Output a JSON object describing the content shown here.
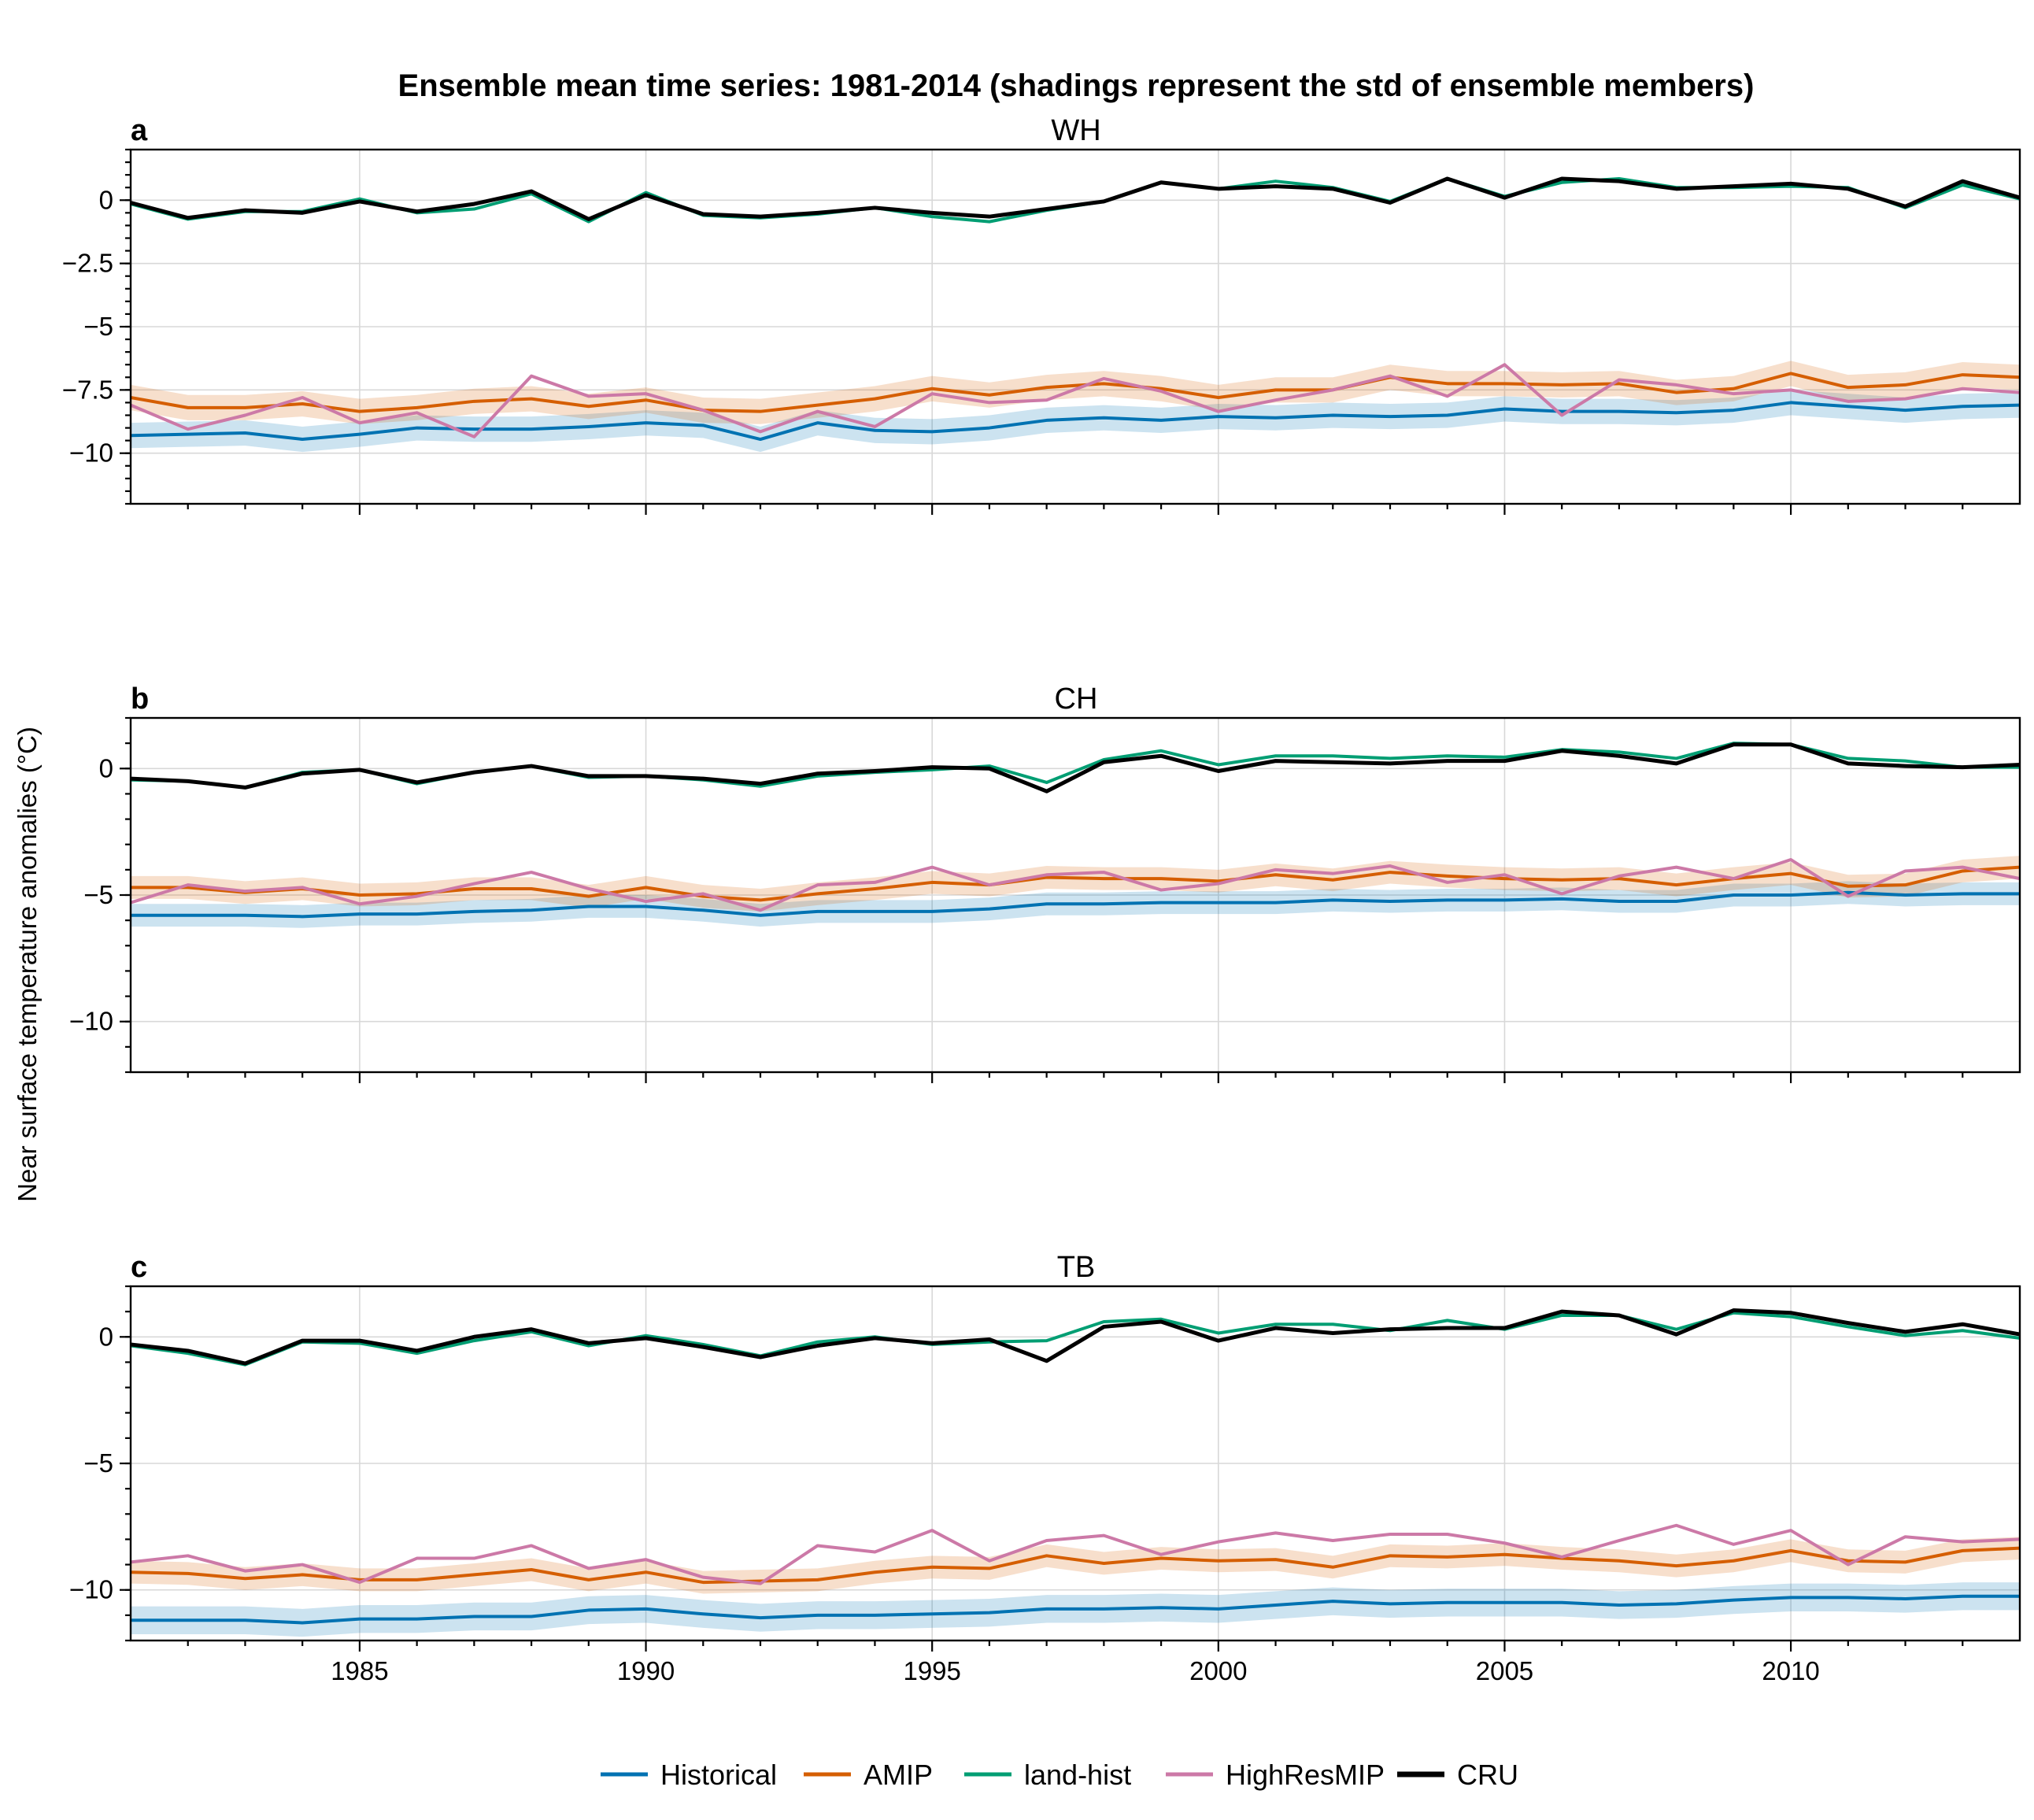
{
  "chart_data": {
    "title": "Ensemble mean time series: 1981-2014 (shadings represent the std of ensemble members)",
    "ylabel": "Near surface temperature anomalies (°C)",
    "type": "line",
    "x": [
      1981,
      1982,
      1983,
      1984,
      1985,
      1986,
      1987,
      1988,
      1989,
      1990,
      1991,
      1992,
      1993,
      1994,
      1995,
      1996,
      1997,
      1998,
      1999,
      2000,
      2001,
      2002,
      2003,
      2004,
      2005,
      2006,
      2007,
      2008,
      2009,
      2010,
      2011,
      2012,
      2013,
      2014
    ],
    "xlim": [
      1981,
      2014
    ],
    "xticks": [
      1985,
      1990,
      1995,
      2000,
      2005,
      2010
    ],
    "grid": true,
    "legend": {
      "position": "bottom-center",
      "entries": [
        {
          "name": "Historical",
          "color": "#0072B2"
        },
        {
          "name": "AMIP",
          "color": "#D55E00"
        },
        {
          "name": "land-hist",
          "color": "#009E73"
        },
        {
          "name": "HighResMIP",
          "color": "#CC79A7"
        },
        {
          "name": "CRU",
          "color": "#000000"
        }
      ]
    },
    "panels": [
      {
        "letter": "a",
        "title": "WH",
        "ylim": [
          -12,
          2
        ],
        "yticks": [
          0,
          -2.5,
          -5,
          -7.5,
          -10
        ],
        "ytick_labels": [
          "0",
          "−2.5",
          "−5",
          "−7.5",
          "−10"
        ],
        "series": [
          {
            "name": "Historical",
            "color": "#0072B2",
            "std": 0.5,
            "values": [
              -9.3,
              -9.25,
              -9.2,
              -9.45,
              -9.25,
              -9.0,
              -9.05,
              -9.05,
              -8.95,
              -8.8,
              -8.9,
              -9.45,
              -8.8,
              -9.1,
              -9.15,
              -9.0,
              -8.7,
              -8.6,
              -8.7,
              -8.55,
              -8.6,
              -8.5,
              -8.55,
              -8.5,
              -8.25,
              -8.35,
              -8.35,
              -8.4,
              -8.3,
              -8.0,
              -8.15,
              -8.3,
              -8.15,
              -8.1
            ]
          },
          {
            "name": "AMIP",
            "color": "#D55E00",
            "std": 0.5,
            "values": [
              -7.8,
              -8.2,
              -8.2,
              -8.05,
              -8.35,
              -8.2,
              -7.95,
              -7.85,
              -8.15,
              -7.9,
              -8.3,
              -8.35,
              -8.1,
              -7.85,
              -7.45,
              -7.7,
              -7.4,
              -7.25,
              -7.45,
              -7.8,
              -7.5,
              -7.5,
              -7.0,
              -7.25,
              -7.25,
              -7.3,
              -7.25,
              -7.6,
              -7.45,
              -6.85,
              -7.4,
              -7.3,
              -6.9,
              -7.0
            ]
          },
          {
            "name": "land-hist",
            "color": "#009E73",
            "std": 0,
            "values": [
              -0.15,
              -0.75,
              -0.45,
              -0.45,
              0.05,
              -0.5,
              -0.35,
              0.25,
              -0.85,
              0.3,
              -0.6,
              -0.7,
              -0.55,
              -0.3,
              -0.65,
              -0.85,
              -0.4,
              -0.05,
              0.7,
              0.45,
              0.75,
              0.5,
              -0.05,
              0.85,
              0.15,
              0.7,
              0.85,
              0.5,
              0.5,
              0.55,
              0.5,
              -0.3,
              0.6,
              0.05
            ]
          },
          {
            "name": "HighResMIP",
            "color": "#CC79A7",
            "std": 0,
            "values": [
              -8.1,
              -9.05,
              -8.5,
              -7.8,
              -8.8,
              -8.4,
              -9.35,
              -6.95,
              -7.75,
              -7.65,
              -8.3,
              -9.15,
              -8.35,
              -8.95,
              -7.65,
              -8.0,
              -7.9,
              -7.05,
              -7.55,
              -8.35,
              -7.9,
              -7.5,
              -6.95,
              -7.75,
              -6.5,
              -8.5,
              -7.1,
              -7.3,
              -7.65,
              -7.5,
              -7.95,
              -7.85,
              -7.45,
              -7.6
            ]
          },
          {
            "name": "CRU",
            "color": "#000000",
            "std": 0,
            "values": [
              -0.1,
              -0.7,
              -0.4,
              -0.5,
              -0.05,
              -0.45,
              -0.15,
              0.35,
              -0.75,
              0.2,
              -0.55,
              -0.65,
              -0.5,
              -0.3,
              -0.5,
              -0.65,
              -0.35,
              -0.05,
              0.7,
              0.45,
              0.55,
              0.45,
              -0.1,
              0.85,
              0.1,
              0.85,
              0.75,
              0.45,
              0.55,
              0.65,
              0.45,
              -0.25,
              0.75,
              0.1
            ]
          }
        ]
      },
      {
        "letter": "b",
        "title": "CH",
        "ylim": [
          -12,
          2
        ],
        "yticks": [
          0,
          -5,
          -10
        ],
        "ytick_labels": [
          "0",
          "−5",
          "−10"
        ],
        "series": [
          {
            "name": "Historical",
            "color": "#0072B2",
            "std": 0.45,
            "values": [
              -5.8,
              -5.8,
              -5.8,
              -5.85,
              -5.75,
              -5.75,
              -5.65,
              -5.6,
              -5.45,
              -5.45,
              -5.6,
              -5.8,
              -5.65,
              -5.65,
              -5.65,
              -5.55,
              -5.35,
              -5.35,
              -5.3,
              -5.3,
              -5.3,
              -5.2,
              -5.25,
              -5.2,
              -5.2,
              -5.15,
              -5.25,
              -5.25,
              -5.0,
              -5.0,
              -4.9,
              -5.0,
              -4.95,
              -4.95
            ]
          },
          {
            "name": "AMIP",
            "color": "#D55E00",
            "std": 0.45,
            "values": [
              -4.7,
              -4.7,
              -4.9,
              -4.75,
              -5.0,
              -4.95,
              -4.75,
              -4.75,
              -5.05,
              -4.7,
              -5.05,
              -5.2,
              -4.95,
              -4.75,
              -4.5,
              -4.6,
              -4.3,
              -4.35,
              -4.35,
              -4.45,
              -4.2,
              -4.4,
              -4.1,
              -4.25,
              -4.35,
              -4.4,
              -4.35,
              -4.6,
              -4.35,
              -4.15,
              -4.65,
              -4.6,
              -4.05,
              -3.9
            ]
          },
          {
            "name": "land-hist",
            "color": "#009E73",
            "std": 0,
            "values": [
              -0.45,
              -0.5,
              -0.75,
              -0.15,
              -0.05,
              -0.6,
              -0.15,
              0.1,
              -0.35,
              -0.3,
              -0.45,
              -0.7,
              -0.3,
              -0.15,
              -0.05,
              0.1,
              -0.55,
              0.35,
              0.7,
              0.15,
              0.5,
              0.5,
              0.4,
              0.5,
              0.45,
              0.75,
              0.65,
              0.4,
              1.0,
              0.95,
              0.4,
              0.3,
              0.05,
              0.05
            ]
          },
          {
            "name": "HighResMIP",
            "color": "#CC79A7",
            "std": 0,
            "values": [
              -5.3,
              -4.6,
              -4.85,
              -4.7,
              -5.35,
              -5.05,
              -4.55,
              -4.1,
              -4.75,
              -5.25,
              -4.95,
              -5.6,
              -4.6,
              -4.5,
              -3.9,
              -4.6,
              -4.2,
              -4.1,
              -4.8,
              -4.55,
              -4.0,
              -4.15,
              -3.85,
              -4.5,
              -4.2,
              -4.95,
              -4.25,
              -3.9,
              -4.35,
              -3.6,
              -5.05,
              -4.05,
              -3.9,
              -4.35
            ]
          },
          {
            "name": "CRU",
            "color": "#000000",
            "std": 0,
            "values": [
              -0.4,
              -0.5,
              -0.75,
              -0.2,
              -0.05,
              -0.55,
              -0.15,
              0.1,
              -0.3,
              -0.3,
              -0.4,
              -0.6,
              -0.2,
              -0.1,
              0.05,
              0.0,
              -0.9,
              0.25,
              0.5,
              -0.1,
              0.3,
              0.25,
              0.2,
              0.3,
              0.3,
              0.7,
              0.5,
              0.2,
              0.95,
              0.95,
              0.2,
              0.1,
              0.05,
              0.15
            ]
          }
        ]
      },
      {
        "letter": "c",
        "title": "TB",
        "ylim": [
          -12,
          2
        ],
        "yticks": [
          0,
          -5,
          -10
        ],
        "ytick_labels": [
          "0",
          "−5",
          "−10"
        ],
        "series": [
          {
            "name": "Historical",
            "color": "#0072B2",
            "std": 0.55,
            "values": [
              -11.2,
              -11.2,
              -11.2,
              -11.3,
              -11.15,
              -11.15,
              -11.05,
              -11.05,
              -10.8,
              -10.75,
              -10.95,
              -11.1,
              -11.0,
              -11.0,
              -10.95,
              -10.9,
              -10.75,
              -10.75,
              -10.7,
              -10.75,
              -10.6,
              -10.45,
              -10.55,
              -10.5,
              -10.5,
              -10.5,
              -10.6,
              -10.55,
              -10.4,
              -10.3,
              -10.3,
              -10.35,
              -10.25,
              -10.25
            ]
          },
          {
            "name": "AMIP",
            "color": "#D55E00",
            "std": 0.45,
            "values": [
              -9.3,
              -9.35,
              -9.55,
              -9.4,
              -9.6,
              -9.6,
              -9.4,
              -9.2,
              -9.6,
              -9.3,
              -9.7,
              -9.65,
              -9.6,
              -9.3,
              -9.1,
              -9.15,
              -8.65,
              -8.95,
              -8.75,
              -8.85,
              -8.8,
              -9.1,
              -8.65,
              -8.7,
              -8.6,
              -8.75,
              -8.85,
              -9.05,
              -8.85,
              -8.45,
              -8.85,
              -8.9,
              -8.45,
              -8.35
            ]
          },
          {
            "name": "land-hist",
            "color": "#009E73",
            "std": 0,
            "values": [
              -0.35,
              -0.65,
              -1.1,
              -0.2,
              -0.25,
              -0.65,
              -0.15,
              0.2,
              -0.35,
              0.05,
              -0.3,
              -0.75,
              -0.2,
              0.0,
              -0.3,
              -0.2,
              -0.15,
              0.6,
              0.7,
              0.15,
              0.5,
              0.5,
              0.25,
              0.65,
              0.3,
              0.85,
              0.85,
              0.3,
              0.95,
              0.8,
              0.4,
              0.05,
              0.25,
              -0.05
            ]
          },
          {
            "name": "HighResMIP",
            "color": "#CC79A7",
            "std": 0,
            "values": [
              -8.9,
              -8.65,
              -9.25,
              -9.0,
              -9.7,
              -8.75,
              -8.75,
              -8.25,
              -9.15,
              -8.8,
              -9.5,
              -9.75,
              -8.25,
              -8.5,
              -7.65,
              -8.85,
              -8.05,
              -7.85,
              -8.6,
              -8.1,
              -7.75,
              -8.05,
              -7.8,
              -7.8,
              -8.15,
              -8.7,
              -8.05,
              -7.45,
              -8.2,
              -7.65,
              -9.0,
              -7.9,
              -8.1,
              -8.0
            ]
          },
          {
            "name": "CRU",
            "color": "#000000",
            "std": 0,
            "values": [
              -0.3,
              -0.55,
              -1.05,
              -0.15,
              -0.15,
              -0.55,
              0.0,
              0.3,
              -0.25,
              -0.05,
              -0.4,
              -0.8,
              -0.35,
              -0.05,
              -0.25,
              -0.1,
              -0.95,
              0.4,
              0.6,
              -0.15,
              0.35,
              0.15,
              0.3,
              0.35,
              0.35,
              1.0,
              0.85,
              0.1,
              1.05,
              0.95,
              0.55,
              0.2,
              0.5,
              0.1
            ]
          }
        ]
      }
    ]
  }
}
